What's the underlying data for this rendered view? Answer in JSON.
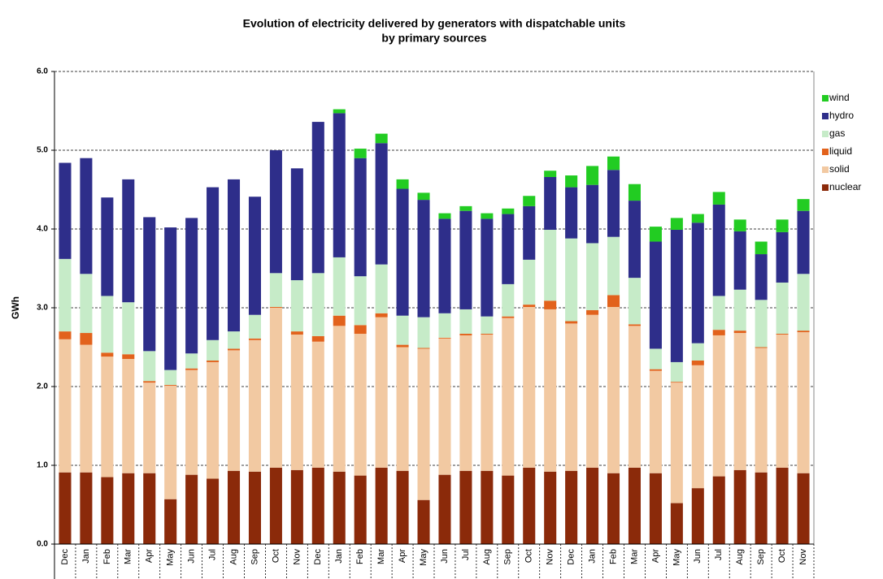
{
  "chart_data": {
    "type": "stacked-bar",
    "title": [
      "Evolution of electricity delivered by generators with dispatchable units",
      "by primary sources"
    ],
    "y_label": "GWh",
    "categories": [
      "Dec",
      "Jan",
      "Feb",
      "Mar",
      "Apr",
      "May",
      "Jun",
      "Jul",
      "Aug",
      "Sep",
      "Oct",
      "Nov",
      "Dec",
      "Jan",
      "Feb",
      "Mar",
      "Apr",
      "May",
      "Jun",
      "Jul",
      "Aug",
      "Sep",
      "Oct",
      "Nov",
      "Dec",
      "Jan",
      "Feb",
      "Mar",
      "Apr",
      "May",
      "Jun",
      "Jul",
      "Aug",
      "Sep",
      "Oct",
      "Nov"
    ],
    "series": [
      {
        "name": "nuclear",
        "color": "#8b2a0a",
        "values": [
          0.91,
          0.91,
          0.85,
          0.9,
          0.9,
          0.57,
          0.88,
          0.83,
          0.93,
          0.92,
          0.97,
          0.94,
          0.97,
          0.92,
          0.87,
          0.97,
          0.93,
          0.56,
          0.88,
          0.93,
          0.93,
          0.87,
          0.97,
          0.92,
          0.93,
          0.97,
          0.9,
          0.97,
          0.9,
          0.52,
          0.71,
          0.86,
          0.94,
          0.91,
          0.97,
          0.9
        ]
      },
      {
        "name": "solid",
        "color": "#f2c9a2",
        "values": [
          1.69,
          1.62,
          1.53,
          1.45,
          1.15,
          1.44,
          1.33,
          1.48,
          1.53,
          1.67,
          2.03,
          1.72,
          1.6,
          1.85,
          1.8,
          1.91,
          1.57,
          1.92,
          1.73,
          1.72,
          1.73,
          2.0,
          2.04,
          2.06,
          1.87,
          1.94,
          2.11,
          1.8,
          1.3,
          1.53,
          1.56,
          1.79,
          1.74,
          1.58,
          1.69,
          1.79
        ]
      },
      {
        "name": "liquid",
        "color": "#e2621c",
        "values": [
          0.1,
          0.15,
          0.05,
          0.06,
          0.02,
          0.01,
          0.02,
          0.02,
          0.02,
          0.02,
          0.01,
          0.04,
          0.07,
          0.13,
          0.11,
          0.05,
          0.03,
          0.01,
          0.01,
          0.02,
          0.01,
          0.02,
          0.03,
          0.11,
          0.03,
          0.06,
          0.15,
          0.02,
          0.02,
          0.01,
          0.06,
          0.07,
          0.03,
          0.01,
          0.01,
          0.02
        ]
      },
      {
        "name": "gas",
        "color": "#c6ebc8",
        "values": [
          0.92,
          0.75,
          0.72,
          0.66,
          0.38,
          0.19,
          0.19,
          0.26,
          0.22,
          0.3,
          0.43,
          0.65,
          0.8,
          0.74,
          0.62,
          0.62,
          0.37,
          0.39,
          0.31,
          0.31,
          0.22,
          0.41,
          0.57,
          0.9,
          1.05,
          0.85,
          0.74,
          0.59,
          0.26,
          0.25,
          0.22,
          0.43,
          0.52,
          0.6,
          0.65,
          0.72
        ]
      },
      {
        "name": "hydro",
        "color": "#2e2e8a",
        "values": [
          1.22,
          1.47,
          1.25,
          1.56,
          1.7,
          1.81,
          1.72,
          1.94,
          1.93,
          1.5,
          1.56,
          1.42,
          1.92,
          1.83,
          1.5,
          1.54,
          1.61,
          1.49,
          1.2,
          1.25,
          1.24,
          0.89,
          0.68,
          0.67,
          0.65,
          0.74,
          0.85,
          0.98,
          1.36,
          1.68,
          1.53,
          1.16,
          0.74,
          0.58,
          0.64,
          0.8
        ]
      },
      {
        "name": "wind",
        "color": "#22cc22",
        "values": [
          0,
          0,
          0,
          0,
          0,
          0,
          0,
          0,
          0,
          0,
          0,
          0,
          0,
          0.05,
          0.12,
          0.12,
          0.12,
          0.09,
          0.07,
          0.06,
          0.07,
          0.07,
          0.13,
          0.08,
          0.15,
          0.24,
          0.17,
          0.21,
          0.19,
          0.15,
          0.11,
          0.16,
          0.15,
          0.16,
          0.16,
          0.15
        ]
      }
    ],
    "ylim": [
      0,
      6
    ],
    "yticks": [
      {
        "value": 0,
        "label": "0.0"
      },
      {
        "value": 1,
        "label": "1.0"
      },
      {
        "value": 2,
        "label": "2.0"
      },
      {
        "value": 3,
        "label": "3.0"
      },
      {
        "value": 4,
        "label": "4.0"
      },
      {
        "value": 5,
        "label": "5.0"
      },
      {
        "value": 6,
        "label": "6.0"
      }
    ],
    "grid": true,
    "legend": "right"
  }
}
